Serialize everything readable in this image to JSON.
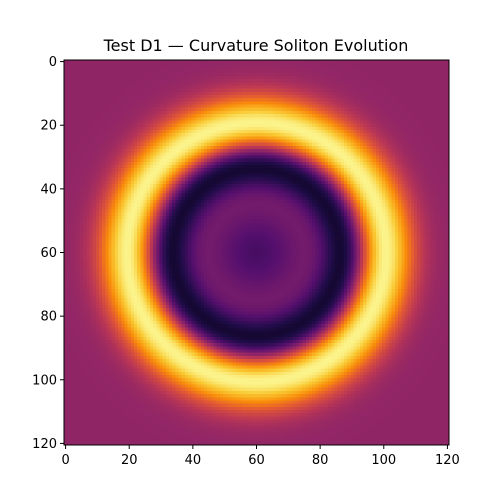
{
  "chart_data": {
    "type": "heatmap",
    "title": "Test D1 — Curvature Soliton Evolution",
    "xlabel": "",
    "ylabel": "",
    "grid_size": [
      121,
      121
    ],
    "xlim": [
      0,
      120
    ],
    "ylim": [
      120,
      0
    ],
    "x_ticks": [
      0,
      20,
      40,
      60,
      80,
      100,
      120
    ],
    "y_ticks": [
      0,
      20,
      40,
      60,
      80,
      100,
      120
    ],
    "colormap": "inferno",
    "center": [
      60,
      60
    ],
    "ring_radius": 40,
    "inner_dark_radius": 29,
    "colors": {
      "background": "#9a2c6a",
      "ring": "#fcffa4",
      "core": "#000004",
      "center": "#5c1a6e"
    }
  }
}
